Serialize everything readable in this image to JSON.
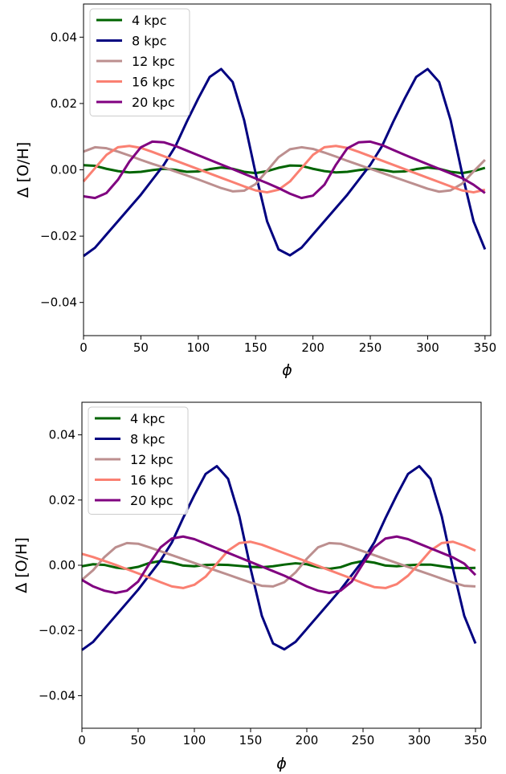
{
  "chart_data": [
    {
      "type": "line",
      "xlabel": "ϕ",
      "ylabel": "Δ [O/H]",
      "xlim": [
        0,
        355
      ],
      "ylim": [
        -0.05,
        0.05
      ],
      "xticks": [
        0,
        50,
        100,
        150,
        200,
        250,
        300,
        350
      ],
      "xtick_labels": [
        "0",
        "50",
        "100",
        "150",
        "200",
        "250",
        "300",
        "350"
      ],
      "yticks": [
        -0.04,
        -0.02,
        0.0,
        0.02,
        0.04
      ],
      "ytick_labels": [
        "−0.04",
        "−0.02",
        "0.00",
        "0.02",
        "0.04"
      ],
      "grid": false,
      "legend_position": "upper-left",
      "series": [
        {
          "name": "4 kpc",
          "color": "#006400",
          "x": [
            0,
            10,
            20,
            30,
            40,
            50,
            60,
            70,
            80,
            90,
            100,
            110,
            120,
            130,
            140,
            150,
            160,
            170,
            180,
            190,
            200,
            210,
            220,
            230,
            240,
            250,
            260,
            270,
            280,
            290,
            300,
            310,
            320,
            330,
            340,
            350
          ],
          "y": [
            0.0014,
            0.0012,
            0.0003,
            -0.0004,
            -0.0008,
            -0.0006,
            -0.0001,
            0.0003,
            0.0,
            -0.0006,
            -0.0005,
            0.0002,
            0.0007,
            0.0003,
            -0.0006,
            -0.001,
            -0.0004,
            0.0006,
            0.0013,
            0.0012,
            0.0003,
            -0.0004,
            -0.0008,
            -0.0006,
            -0.0001,
            0.0003,
            0.0,
            -0.0006,
            -0.0005,
            0.0002,
            0.0007,
            0.0003,
            -0.0006,
            -0.001,
            -0.0004,
            0.0006
          ]
        },
        {
          "name": "8 kpc",
          "color": "#000080",
          "x": [
            0,
            10,
            20,
            30,
            40,
            50,
            60,
            70,
            80,
            90,
            100,
            110,
            120,
            130,
            140,
            150,
            160,
            170,
            180,
            190,
            200,
            210,
            220,
            230,
            240,
            250,
            260,
            270,
            280,
            290,
            300,
            310,
            320,
            330,
            340,
            350
          ],
          "y": [
            -0.026,
            -0.0235,
            -0.0195,
            -0.0155,
            -0.0115,
            -0.0075,
            -0.003,
            0.0015,
            0.007,
            0.0145,
            0.0215,
            0.028,
            0.0304,
            0.0265,
            0.015,
            -0.001,
            -0.0155,
            -0.024,
            -0.0258,
            -0.0235,
            -0.0195,
            -0.0155,
            -0.0115,
            -0.0075,
            -0.003,
            0.0015,
            0.007,
            0.0145,
            0.0215,
            0.028,
            0.0304,
            0.0265,
            0.015,
            -0.001,
            -0.0155,
            -0.024
          ]
        },
        {
          "name": "12 kpc",
          "color": "#bc8f8f",
          "x": [
            0,
            10,
            20,
            30,
            40,
            50,
            60,
            70,
            80,
            90,
            100,
            110,
            120,
            130,
            140,
            150,
            160,
            170,
            180,
            190,
            200,
            210,
            220,
            230,
            240,
            250,
            260,
            270,
            280,
            290,
            300,
            310,
            320,
            330,
            340,
            350
          ],
          "y": [
            0.0055,
            0.0068,
            0.0065,
            0.0055,
            0.0043,
            0.003,
            0.0018,
            0.0007,
            -0.0005,
            -0.0017,
            -0.0029,
            -0.0042,
            -0.0055,
            -0.0065,
            -0.0063,
            -0.0043,
            -0.0003,
            0.0038,
            0.0062,
            0.0068,
            0.0063,
            0.0052,
            0.004,
            0.0027,
            0.0015,
            0.0003,
            -0.0009,
            -0.0021,
            -0.0033,
            -0.0045,
            -0.0057,
            -0.0066,
            -0.0062,
            -0.0042,
            -0.0005,
            0.003
          ]
        },
        {
          "name": "16 kpc",
          "color": "#fa8072",
          "x": [
            0,
            10,
            20,
            30,
            40,
            50,
            60,
            70,
            80,
            90,
            100,
            110,
            120,
            130,
            140,
            150,
            160,
            170,
            180,
            190,
            200,
            210,
            220,
            230,
            240,
            250,
            260,
            270,
            280,
            290,
            300,
            310,
            320,
            330,
            340,
            350
          ],
          "y": [
            -0.0035,
            0.0005,
            0.0045,
            0.0068,
            0.0072,
            0.0066,
            0.0054,
            0.0041,
            0.0028,
            0.0015,
            0.0002,
            -0.0011,
            -0.0024,
            -0.0037,
            -0.005,
            -0.0062,
            -0.0068,
            -0.006,
            -0.0035,
            0.0005,
            0.0045,
            0.0068,
            0.0072,
            0.0066,
            0.0054,
            0.0041,
            0.0028,
            0.0015,
            0.0002,
            -0.0011,
            -0.0024,
            -0.0037,
            -0.005,
            -0.0062,
            -0.0068,
            -0.006
          ]
        },
        {
          "name": "20 kpc",
          "color": "#800080",
          "x": [
            0,
            10,
            20,
            30,
            40,
            50,
            60,
            70,
            80,
            90,
            100,
            110,
            120,
            130,
            140,
            150,
            160,
            170,
            180,
            190,
            200,
            210,
            220,
            230,
            240,
            250,
            260,
            270,
            280,
            290,
            300,
            310,
            320,
            330,
            340,
            350
          ],
          "y": [
            -0.008,
            -0.0085,
            -0.007,
            -0.003,
            0.0025,
            0.0068,
            0.0085,
            0.0083,
            0.0072,
            0.0058,
            0.0044,
            0.003,
            0.0016,
            0.0002,
            -0.0012,
            -0.0026,
            -0.004,
            -0.0055,
            -0.0072,
            -0.0085,
            -0.0078,
            -0.0045,
            0.0015,
            0.0065,
            0.0083,
            0.0085,
            0.0075,
            0.006,
            0.0045,
            0.0031,
            0.0017,
            0.0003,
            -0.0011,
            -0.0025,
            -0.0045,
            -0.007
          ]
        }
      ]
    },
    {
      "type": "line",
      "xlabel": "ϕ",
      "ylabel": "Δ [O/H]",
      "xlim": [
        0,
        355
      ],
      "ylim": [
        -0.05,
        0.05
      ],
      "xticks": [
        0,
        50,
        100,
        150,
        200,
        250,
        300,
        350
      ],
      "xtick_labels": [
        "0",
        "50",
        "100",
        "150",
        "200",
        "250",
        "300",
        "350"
      ],
      "yticks": [
        -0.04,
        -0.02,
        0.0,
        0.02,
        0.04
      ],
      "ytick_labels": [
        "−0.04",
        "−0.02",
        "0.00",
        "0.02",
        "0.04"
      ],
      "grid": false,
      "legend_position": "upper-left",
      "series": [
        {
          "name": "4 kpc",
          "color": "#006400",
          "x": [
            0,
            10,
            20,
            30,
            40,
            50,
            60,
            70,
            80,
            90,
            100,
            110,
            120,
            130,
            140,
            150,
            160,
            170,
            180,
            190,
            200,
            210,
            220,
            230,
            240,
            250,
            260,
            270,
            280,
            290,
            300,
            310,
            320,
            330,
            340,
            350
          ],
          "y": [
            -0.0003,
            0.0003,
            0.0001,
            -0.0007,
            -0.0011,
            -0.0005,
            0.0007,
            0.0013,
            0.0008,
            -0.0001,
            -0.0003,
            0.0001,
            0.0002,
            0.0001,
            -0.0002,
            -0.0005,
            -0.0006,
            -0.0003,
            0.0002,
            0.0006,
            0.0003,
            -0.0006,
            -0.0011,
            -0.0006,
            0.0006,
            0.0013,
            0.0008,
            -0.0001,
            -0.0003,
            0.0,
            0.0002,
            0.0002,
            -0.0003,
            -0.0008,
            -0.0009,
            -0.0008
          ]
        },
        {
          "name": "8 kpc",
          "color": "#000080",
          "x": [
            0,
            10,
            20,
            30,
            40,
            50,
            60,
            70,
            80,
            90,
            100,
            110,
            120,
            130,
            140,
            150,
            160,
            170,
            180,
            190,
            200,
            210,
            220,
            230,
            240,
            250,
            260,
            270,
            280,
            290,
            300,
            310,
            320,
            330,
            340,
            350
          ],
          "y": [
            -0.026,
            -0.0235,
            -0.0195,
            -0.0155,
            -0.0115,
            -0.0075,
            -0.003,
            0.0015,
            0.007,
            0.0145,
            0.0215,
            0.028,
            0.0304,
            0.0265,
            0.015,
            -0.001,
            -0.0155,
            -0.024,
            -0.0258,
            -0.0235,
            -0.0195,
            -0.0155,
            -0.0115,
            -0.0075,
            -0.003,
            0.0015,
            0.007,
            0.0145,
            0.0215,
            0.028,
            0.0304,
            0.0265,
            0.015,
            -0.001,
            -0.0155,
            -0.024
          ]
        },
        {
          "name": "12 kpc",
          "color": "#bc8f8f",
          "x": [
            0,
            10,
            20,
            30,
            40,
            50,
            60,
            70,
            80,
            90,
            100,
            110,
            120,
            130,
            140,
            150,
            160,
            170,
            180,
            190,
            200,
            210,
            220,
            230,
            240,
            250,
            260,
            270,
            280,
            290,
            300,
            310,
            320,
            330,
            340,
            350
          ],
          "y": [
            -0.0045,
            -0.0015,
            0.0025,
            0.0055,
            0.0068,
            0.0066,
            0.0055,
            0.0043,
            0.0031,
            0.0019,
            0.0007,
            -0.0005,
            -0.0017,
            -0.0029,
            -0.0041,
            -0.0053,
            -0.0063,
            -0.0065,
            -0.0052,
            -0.0022,
            0.002,
            0.0055,
            0.0068,
            0.0066,
            0.0055,
            0.0043,
            0.0031,
            0.0019,
            0.0007,
            -0.0005,
            -0.0017,
            -0.0029,
            -0.0041,
            -0.0053,
            -0.0063,
            -0.0065
          ]
        },
        {
          "name": "16 kpc",
          "color": "#fa8072",
          "x": [
            0,
            10,
            20,
            30,
            40,
            50,
            60,
            70,
            80,
            90,
            100,
            110,
            120,
            130,
            140,
            150,
            160,
            170,
            180,
            190,
            200,
            210,
            220,
            230,
            240,
            250,
            260,
            270,
            280,
            290,
            300,
            310,
            320,
            330,
            340,
            350
          ],
          "y": [
            0.0035,
            0.0025,
            0.0013,
            0.0001,
            -0.0012,
            -0.0025,
            -0.0038,
            -0.0052,
            -0.0065,
            -0.007,
            -0.006,
            -0.0035,
            0.0005,
            0.0045,
            0.0068,
            0.0072,
            0.0063,
            0.005,
            0.0037,
            0.0024,
            0.0011,
            -0.0002,
            -0.0015,
            -0.0028,
            -0.0041,
            -0.0055,
            -0.0067,
            -0.007,
            -0.0058,
            -0.0032,
            0.0005,
            0.0045,
            0.0068,
            0.0072,
            0.006,
            0.0045
          ]
        },
        {
          "name": "20 kpc",
          "color": "#800080",
          "x": [
            0,
            10,
            20,
            30,
            40,
            50,
            60,
            70,
            80,
            90,
            100,
            110,
            120,
            130,
            140,
            150,
            160,
            170,
            180,
            190,
            200,
            210,
            220,
            230,
            240,
            250,
            260,
            270,
            280,
            290,
            300,
            310,
            320,
            330,
            340,
            350
          ],
          "y": [
            -0.0045,
            -0.0065,
            -0.0078,
            -0.0085,
            -0.0078,
            -0.005,
            0.0005,
            0.0055,
            0.0082,
            0.0088,
            0.008,
            0.0066,
            0.0052,
            0.0038,
            0.0024,
            0.001,
            -0.0004,
            -0.0018,
            -0.0032,
            -0.0048,
            -0.0065,
            -0.0078,
            -0.0085,
            -0.0078,
            -0.005,
            0.0005,
            0.0055,
            0.0082,
            0.0088,
            0.008,
            0.0066,
            0.0052,
            0.0038,
            0.0024,
            0.0005,
            -0.003
          ]
        }
      ]
    }
  ]
}
